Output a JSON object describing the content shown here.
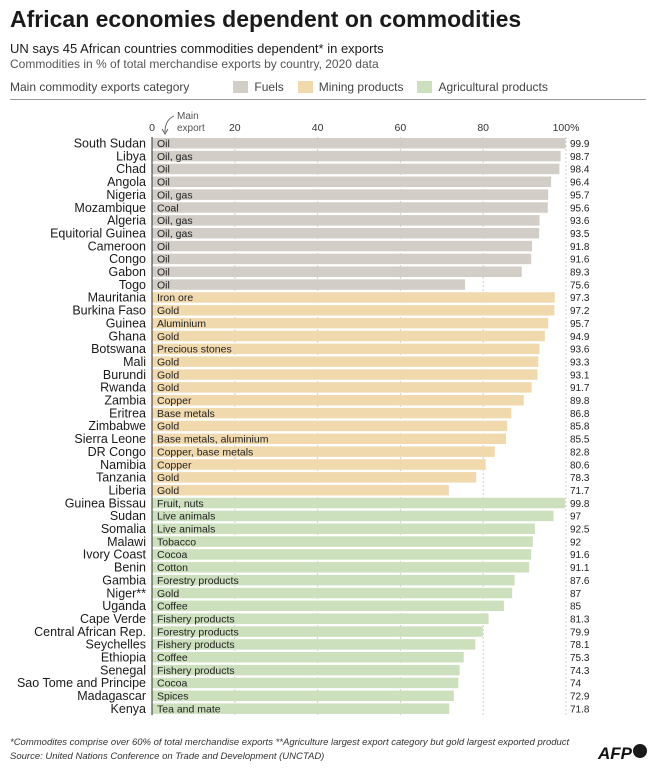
{
  "header": {
    "title": "African economies dependent on commodities",
    "subtitle": "UN says 45 African countries commodities dependent* in exports",
    "subtitle2": "Commodities in % of total merchandise exports by country, 2020 data"
  },
  "legend": {
    "label": "Main commodity exports category",
    "items": [
      {
        "name": "Fuels",
        "color": "#d2cdc6"
      },
      {
        "name": "Mining products",
        "color": "#f1d9ae"
      },
      {
        "name": "Agricultural products",
        "color": "#cde0bd"
      }
    ]
  },
  "chart_data": {
    "type": "bar",
    "orientation": "horizontal",
    "xlim": [
      0,
      100
    ],
    "ticks": [
      "0",
      "20",
      "40",
      "60",
      "80",
      "100%"
    ],
    "tick_values": [
      0,
      20,
      40,
      60,
      80,
      100
    ],
    "annotation": "Main export",
    "categories_colors": {
      "Fuels": "#d2cdc6",
      "Mining": "#f1d9ae",
      "Agricultural": "#cde0bd"
    },
    "rows": [
      {
        "country": "South Sudan",
        "export": "Oil",
        "value": 99.9,
        "label": "99.9",
        "category": "Fuels"
      },
      {
        "country": "Libya",
        "export": "Oil, gas",
        "value": 98.7,
        "label": "98.7",
        "category": "Fuels"
      },
      {
        "country": "Chad",
        "export": "Oil",
        "value": 98.4,
        "label": "98.4",
        "category": "Fuels"
      },
      {
        "country": "Angola",
        "export": "Oil",
        "value": 96.4,
        "label": "96.4",
        "category": "Fuels"
      },
      {
        "country": "Nigeria",
        "export": "Oil, gas",
        "value": 95.7,
        "label": "95.7",
        "category": "Fuels"
      },
      {
        "country": "Mozambique",
        "export": "Coal",
        "value": 95.6,
        "label": "95.6",
        "category": "Fuels"
      },
      {
        "country": "Algeria",
        "export": "Oil, gas",
        "value": 93.6,
        "label": "93.6",
        "category": "Fuels"
      },
      {
        "country": "Equitorial Guinea",
        "export": "Oil, gas",
        "value": 93.5,
        "label": "93.5",
        "category": "Fuels"
      },
      {
        "country": "Cameroon",
        "export": "Oil",
        "value": 91.8,
        "label": "91.8",
        "category": "Fuels"
      },
      {
        "country": "Congo",
        "export": "Oil",
        "value": 91.6,
        "label": "91.6",
        "category": "Fuels"
      },
      {
        "country": "Gabon",
        "export": "Oil",
        "value": 89.3,
        "label": "89.3",
        "category": "Fuels"
      },
      {
        "country": "Togo",
        "export": "Oil",
        "value": 75.6,
        "label": "75.6",
        "category": "Fuels"
      },
      {
        "country": "Mauritania",
        "export": "Iron ore",
        "value": 97.3,
        "label": "97.3",
        "category": "Mining"
      },
      {
        "country": "Burkina Faso",
        "export": "Gold",
        "value": 97.2,
        "label": "97.2",
        "category": "Mining"
      },
      {
        "country": "Guinea",
        "export": "Aluminium",
        "value": 95.7,
        "label": "95.7",
        "category": "Mining"
      },
      {
        "country": "Ghana",
        "export": "Gold",
        "value": 94.9,
        "label": "94.9",
        "category": "Mining"
      },
      {
        "country": "Botswana",
        "export": "Precious stones",
        "value": 93.6,
        "label": "93.6",
        "category": "Mining"
      },
      {
        "country": "Mali",
        "export": "Gold",
        "value": 93.3,
        "label": "93.3",
        "category": "Mining"
      },
      {
        "country": "Burundi",
        "export": "Gold",
        "value": 93.1,
        "label": "93.1",
        "category": "Mining"
      },
      {
        "country": "Rwanda",
        "export": "Gold",
        "value": 91.7,
        "label": "91.7",
        "category": "Mining"
      },
      {
        "country": "Zambia",
        "export": "Copper",
        "value": 89.8,
        "label": "89.8",
        "category": "Mining"
      },
      {
        "country": "Eritrea",
        "export": "Base metals",
        "value": 86.8,
        "label": "86.8",
        "category": "Mining"
      },
      {
        "country": "Zimbabwe",
        "export": "Gold",
        "value": 85.8,
        "label": "85.8",
        "category": "Mining"
      },
      {
        "country": "Sierra Leone",
        "export": "Base metals, aluminium",
        "value": 85.5,
        "label": "85.5",
        "category": "Mining"
      },
      {
        "country": "DR Congo",
        "export": "Copper, base metals",
        "value": 82.8,
        "label": "82.8",
        "category": "Mining"
      },
      {
        "country": "Namibia",
        "export": "Copper",
        "value": 80.6,
        "label": "80.6",
        "category": "Mining"
      },
      {
        "country": "Tanzania",
        "export": "Gold",
        "value": 78.3,
        "label": "78.3",
        "category": "Mining"
      },
      {
        "country": "Liberia",
        "export": "Gold",
        "value": 71.7,
        "label": "71.7",
        "category": "Mining"
      },
      {
        "country": "Guinea Bissau",
        "export": "Fruit, nuts",
        "value": 99.8,
        "label": "99.8",
        "category": "Agricultural"
      },
      {
        "country": "Sudan",
        "export": "Live animals",
        "value": 97,
        "label": "97",
        "category": "Agricultural"
      },
      {
        "country": "Somalia",
        "export": "Live animals",
        "value": 92.5,
        "label": "92.5",
        "category": "Agricultural"
      },
      {
        "country": "Malawi",
        "export": "Tobacco",
        "value": 92,
        "label": "92",
        "category": "Agricultural"
      },
      {
        "country": "Ivory Coast",
        "export": "Cocoa",
        "value": 91.6,
        "label": "91.6",
        "category": "Agricultural"
      },
      {
        "country": "Benin",
        "export": "Cotton",
        "value": 91.1,
        "label": "91.1",
        "category": "Agricultural"
      },
      {
        "country": "Gambia",
        "export": "Forestry products",
        "value": 87.6,
        "label": "87.6",
        "category": "Agricultural"
      },
      {
        "country": "Niger**",
        "export": "Gold",
        "value": 87,
        "label": "87",
        "category": "Agricultural"
      },
      {
        "country": "Uganda",
        "export": "Coffee",
        "value": 85,
        "label": "85",
        "category": "Agricultural"
      },
      {
        "country": "Cape Verde",
        "export": "Fishery products",
        "value": 81.3,
        "label": "81.3",
        "category": "Agricultural"
      },
      {
        "country": "Central African Rep.",
        "export": "Forestry products",
        "value": 79.9,
        "label": "79.9",
        "category": "Agricultural"
      },
      {
        "country": "Seychelles",
        "export": "Fishery products",
        "value": 78.1,
        "label": "78.1",
        "category": "Agricultural"
      },
      {
        "country": "Ethiopia",
        "export": "Coffee",
        "value": 75.3,
        "label": "75.3",
        "category": "Agricultural"
      },
      {
        "country": "Senegal",
        "export": "Fishery products",
        "value": 74.3,
        "label": "74.3",
        "category": "Agricultural"
      },
      {
        "country": "Sao Tome and Principe",
        "export": "Cocoa",
        "value": 74,
        "label": "74",
        "category": "Agricultural"
      },
      {
        "country": "Madagascar",
        "export": "Spices",
        "value": 72.9,
        "label": "72.9",
        "category": "Agricultural"
      },
      {
        "country": "Kenya",
        "export": "Tea and mate",
        "value": 71.8,
        "label": "71.8",
        "category": "Agricultural"
      }
    ]
  },
  "footer": {
    "note": "*Commodites comprise over 60% of  total merchandise exports  **Agriculture largest export category but gold largest exported product",
    "source": "Source:  United Nations Conference on Trade and Development (UNCTAD)",
    "brand": "AFP"
  }
}
